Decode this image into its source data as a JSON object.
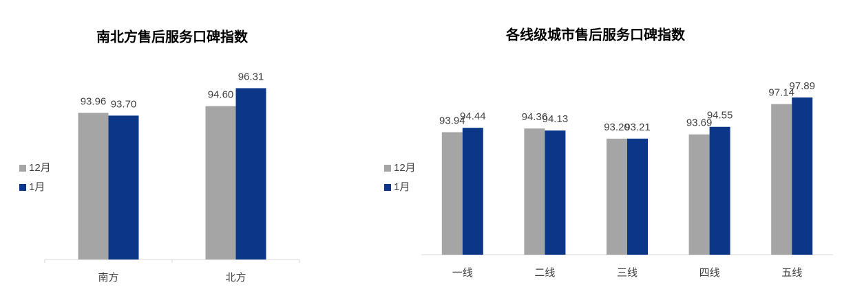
{
  "chart_data": [
    {
      "type": "bar",
      "title": "南北方售后服务口碑指数",
      "categories": [
        "南方",
        "北方"
      ],
      "series": [
        {
          "name": "12月",
          "color": "#a5a5a5",
          "values": [
            93.96,
            94.6
          ],
          "value_labels": [
            "93.96",
            "94.60"
          ]
        },
        {
          "name": "1月",
          "color": "#0c3789",
          "values": [
            93.7,
            96.31
          ],
          "value_labels": [
            "93.70",
            "96.31"
          ]
        }
      ],
      "ylim": [
        80,
        100
      ],
      "legend": "left"
    },
    {
      "type": "bar",
      "title": "各线级城市售后服务口碑指数",
      "categories": [
        "一线",
        "二线",
        "三线",
        "四线",
        "五线"
      ],
      "series": [
        {
          "name": "12月",
          "color": "#a5a5a5",
          "values": [
            93.94,
            94.36,
            93.2,
            93.69,
            97.14
          ],
          "value_labels": [
            "93.94",
            "94.36",
            "93.20",
            "93.69",
            "97.14"
          ]
        },
        {
          "name": "1月",
          "color": "#0c3789",
          "values": [
            94.44,
            94.13,
            93.21,
            94.55,
            97.89
          ],
          "value_labels": [
            "94.44",
            "94.13",
            "93.21",
            "94.55",
            "97.89"
          ]
        }
      ],
      "ylim": [
        80,
        100
      ],
      "legend": "left"
    }
  ]
}
